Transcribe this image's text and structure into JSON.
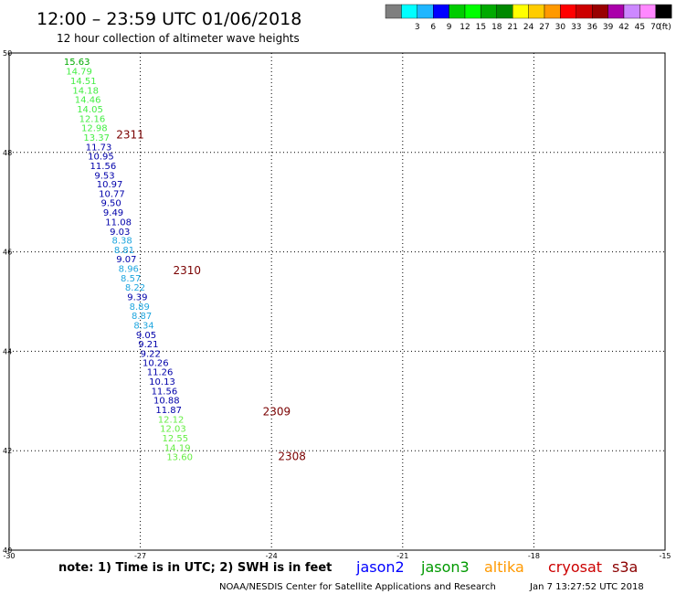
{
  "header": {
    "title": "12:00 – 23:59 UTC 01/06/2018",
    "subtitle": "12 hour collection of altimeter wave heights"
  },
  "legend": {
    "unit_label": "(ft)",
    "bins": [
      {
        "label": "",
        "color": "#7f7f7f"
      },
      {
        "label": "3",
        "color": "#00ffff"
      },
      {
        "label": "6",
        "color": "#1fb6ff"
      },
      {
        "label": "9",
        "color": "#0000ff"
      },
      {
        "label": "12",
        "color": "#00cc00"
      },
      {
        "label": "15",
        "color": "#00ff00"
      },
      {
        "label": "18",
        "color": "#00aa00"
      },
      {
        "label": "21",
        "color": "#008800"
      },
      {
        "label": "24",
        "color": "#ffff00"
      },
      {
        "label": "27",
        "color": "#ffcc00"
      },
      {
        "label": "30",
        "color": "#ff9900"
      },
      {
        "label": "33",
        "color": "#ff0000"
      },
      {
        "label": "36",
        "color": "#cc0000"
      },
      {
        "label": "39",
        "color": "#990000"
      },
      {
        "label": "42",
        "color": "#aa00aa"
      },
      {
        "label": "45",
        "color": "#cc88ff"
      },
      {
        "label": "70",
        "color": "#ff88ff"
      },
      {
        "label": "",
        "color": "#000000"
      }
    ]
  },
  "map": {
    "x_ticks": [
      "-30",
      "-27",
      "-24",
      "-21",
      "-18",
      "-15"
    ],
    "y_ticks": [
      "40",
      "42",
      "44",
      "46",
      "48",
      "50"
    ],
    "x_range": [
      -30,
      -15
    ],
    "y_range": [
      40,
      50
    ]
  },
  "chart_data": {
    "type": "scatter",
    "x_range": [
      -30,
      -15
    ],
    "y_range": [
      40,
      50
    ],
    "points": [
      {
        "lon": -28.75,
        "lat": 49.83,
        "v": "15.63",
        "c": "#00aa00"
      },
      {
        "lon": -28.7,
        "lat": 49.64,
        "v": "14.79",
        "c": "#44ee44"
      },
      {
        "lon": -28.6,
        "lat": 49.45,
        "v": "14.51",
        "c": "#44ee44"
      },
      {
        "lon": -28.55,
        "lat": 49.26,
        "v": "14.18",
        "c": "#44ee44"
      },
      {
        "lon": -28.5,
        "lat": 49.07,
        "v": "14.46",
        "c": "#44ee44"
      },
      {
        "lon": -28.45,
        "lat": 48.88,
        "v": "14.05",
        "c": "#44ee44"
      },
      {
        "lon": -28.4,
        "lat": 48.69,
        "v": "12.16",
        "c": "#44ee44"
      },
      {
        "lon": -28.35,
        "lat": 48.5,
        "v": "12.98",
        "c": "#44ee44"
      },
      {
        "lon": -28.3,
        "lat": 48.31,
        "v": "13.37",
        "c": "#44ee44"
      },
      {
        "lon": -28.25,
        "lat": 48.12,
        "v": "11.73",
        "c": "#0000aa"
      },
      {
        "lon": -28.2,
        "lat": 47.93,
        "v": "10.95",
        "c": "#0000aa"
      },
      {
        "lon": -28.15,
        "lat": 47.74,
        "v": "11.56",
        "c": "#0000aa"
      },
      {
        "lon": -28.05,
        "lat": 47.55,
        "v": "9.53",
        "c": "#0000aa"
      },
      {
        "lon": -28.0,
        "lat": 47.37,
        "v": "10.97",
        "c": "#0000aa"
      },
      {
        "lon": -27.95,
        "lat": 47.18,
        "v": "10.77",
        "c": "#0000aa"
      },
      {
        "lon": -27.9,
        "lat": 46.99,
        "v": "9.50",
        "c": "#0000aa"
      },
      {
        "lon": -27.85,
        "lat": 46.8,
        "v": "9.49",
        "c": "#0000aa"
      },
      {
        "lon": -27.8,
        "lat": 46.61,
        "v": "11.08",
        "c": "#0000aa"
      },
      {
        "lon": -27.7,
        "lat": 46.42,
        "v": "9.03",
        "c": "#0000aa"
      },
      {
        "lon": -27.65,
        "lat": 46.24,
        "v": "8.38",
        "c": "#1fa6df"
      },
      {
        "lon": -27.6,
        "lat": 46.05,
        "v": "8.81",
        "c": "#1fa6df"
      },
      {
        "lon": -27.55,
        "lat": 45.86,
        "v": "9.07",
        "c": "#0000aa"
      },
      {
        "lon": -27.5,
        "lat": 45.67,
        "v": "8.96",
        "c": "#1fa6df"
      },
      {
        "lon": -27.45,
        "lat": 45.48,
        "v": "8.57",
        "c": "#1fa6df"
      },
      {
        "lon": -27.35,
        "lat": 45.29,
        "v": "8.22",
        "c": "#1fa6df"
      },
      {
        "lon": -27.3,
        "lat": 45.1,
        "v": "9.39",
        "c": "#0000aa"
      },
      {
        "lon": -27.25,
        "lat": 44.91,
        "v": "8.89",
        "c": "#1fa6df"
      },
      {
        "lon": -27.2,
        "lat": 44.72,
        "v": "8.87",
        "c": "#1fa6df"
      },
      {
        "lon": -27.15,
        "lat": 44.53,
        "v": "8.34",
        "c": "#1fa6df"
      },
      {
        "lon": -27.1,
        "lat": 44.34,
        "v": "9.05",
        "c": "#0000aa"
      },
      {
        "lon": -27.05,
        "lat": 44.15,
        "v": "9.21",
        "c": "#0000aa"
      },
      {
        "lon": -27.0,
        "lat": 43.96,
        "v": "9.22",
        "c": "#0000aa"
      },
      {
        "lon": -26.95,
        "lat": 43.78,
        "v": "10.26",
        "c": "#0000aa"
      },
      {
        "lon": -26.85,
        "lat": 43.59,
        "v": "11.26",
        "c": "#0000aa"
      },
      {
        "lon": -26.8,
        "lat": 43.4,
        "v": "10.13",
        "c": "#0000aa"
      },
      {
        "lon": -26.75,
        "lat": 43.21,
        "v": "11.56",
        "c": "#0000aa"
      },
      {
        "lon": -26.7,
        "lat": 43.02,
        "v": "10.88",
        "c": "#0000aa"
      },
      {
        "lon": -26.65,
        "lat": 42.83,
        "v": "11.87",
        "c": "#0000aa"
      },
      {
        "lon": -26.6,
        "lat": 42.64,
        "v": "12.12",
        "c": "#66ee44"
      },
      {
        "lon": -26.55,
        "lat": 42.45,
        "v": "12.03",
        "c": "#66ee44"
      },
      {
        "lon": -26.5,
        "lat": 42.26,
        "v": "12.55",
        "c": "#66ee44"
      },
      {
        "lon": -26.45,
        "lat": 42.07,
        "v": "14.19",
        "c": "#66ee44"
      },
      {
        "lon": -26.4,
        "lat": 41.88,
        "v": "13.60",
        "c": "#66ee44"
      }
    ],
    "pass_labels": [
      {
        "lon": -27.55,
        "lat": 48.37,
        "v": "2311"
      },
      {
        "lon": -26.25,
        "lat": 45.64,
        "v": "2310"
      },
      {
        "lon": -24.2,
        "lat": 42.8,
        "v": "2309"
      },
      {
        "lon": -23.85,
        "lat": 41.9,
        "v": "2308"
      }
    ]
  },
  "note": "note:  1) Time is in UTC;  2) SWH is in feet",
  "satellites": [
    {
      "name": "jason2",
      "color": "#0000ff"
    },
    {
      "name": "jason3",
      "color": "#009900"
    },
    {
      "name": "altika",
      "color": "#ff9900"
    },
    {
      "name": "cryosat",
      "color": "#cc0000"
    },
    {
      "name": "s3a",
      "color": "#8b0000"
    }
  ],
  "footer": {
    "credit": "NOAA/NESDIS Center for Satellite Applications and Research",
    "timestamp": "Jan  7 13:27:52 UTC 2018"
  }
}
